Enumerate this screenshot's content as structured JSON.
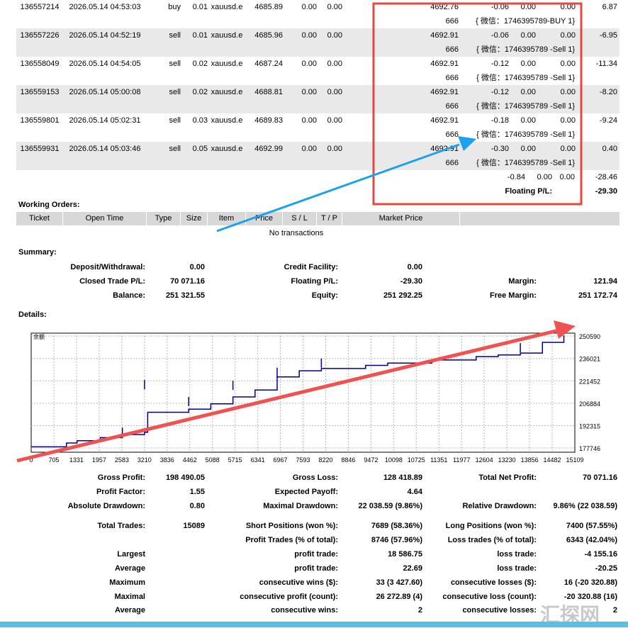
{
  "trades": [
    {
      "ticket": "136557214",
      "time": "2026.05.14 04:53:03",
      "type": "buy",
      "size": "0.01",
      "item": "xauusd.e",
      "price": "4685.89",
      "sl": "0.00",
      "tp": "0.00",
      "close_price": "4692.76",
      "commission": "-0.06",
      "swap": "0.00",
      "taxes": "0.00",
      "profit": "6.87",
      "magic": "666",
      "comment": "{ 微信：1746395789-BUY 1}"
    },
    {
      "ticket": "136557226",
      "time": "2026.05.14 04:52:19",
      "type": "sell",
      "size": "0.01",
      "item": "xauusd.e",
      "price": "4685.96",
      "sl": "0.00",
      "tp": "0.00",
      "close_price": "4692.91",
      "commission": "-0.06",
      "swap": "0.00",
      "taxes": "0.00",
      "profit": "-6.95",
      "magic": "666",
      "comment": "{ 微信：1746395789 -Sell 1}"
    },
    {
      "ticket": "136558049",
      "time": "2026.05.14 04:54:05",
      "type": "sell",
      "size": "0.02",
      "item": "xauusd.e",
      "price": "4687.24",
      "sl": "0.00",
      "tp": "0.00",
      "close_price": "4692.91",
      "commission": "-0.12",
      "swap": "0.00",
      "taxes": "0.00",
      "profit": "-11.34",
      "magic": "666",
      "comment": "{ 微信：1746395789 -Sell 1}"
    },
    {
      "ticket": "136559153",
      "time": "2026.05.14 05:00:08",
      "type": "sell",
      "size": "0.02",
      "item": "xauusd.e",
      "price": "4688.81",
      "sl": "0.00",
      "tp": "0.00",
      "close_price": "4692.91",
      "commission": "-0.12",
      "swap": "0.00",
      "taxes": "0.00",
      "profit": "-8.20",
      "magic": "666",
      "comment": "{ 微信：1746395789 -Sell 1}"
    },
    {
      "ticket": "136559801",
      "time": "2026.05.14 05:02:31",
      "type": "sell",
      "size": "0.03",
      "item": "xauusd.e",
      "price": "4689.83",
      "sl": "0.00",
      "tp": "0.00",
      "close_price": "4692.91",
      "commission": "-0.18",
      "swap": "0.00",
      "taxes": "0.00",
      "profit": "-9.24",
      "magic": "666",
      "comment": "{ 微信：1746395789 -Sell 1}"
    },
    {
      "ticket": "136559931",
      "time": "2026.05.14 05:03:46",
      "type": "sell",
      "size": "0.05",
      "item": "xauusd.e",
      "price": "4692.99",
      "sl": "0.00",
      "tp": "0.00",
      "close_price": "4692.91",
      "commission": "-0.30",
      "swap": "0.00",
      "taxes": "0.00",
      "profit": "0.40",
      "magic": "666",
      "comment": "{ 微信：1746395789 -Sell 1}"
    }
  ],
  "totals": {
    "commission": "-0.84",
    "swap": "0.00",
    "taxes": "0.00",
    "profit": "-28.46",
    "floating_label": "Floating P/L:",
    "floating_value": "-29.30"
  },
  "working_orders": {
    "title": "Working Orders:",
    "headers": [
      "Ticket",
      "Open Time",
      "Type",
      "Size",
      "Item",
      "Price",
      "S / L",
      "T / P",
      "Market Price"
    ],
    "empty": "No transactions"
  },
  "summary": {
    "title": "Summary:",
    "deposit_label": "Deposit/Withdrawal:",
    "deposit": "0.00",
    "credit_label": "Credit Facility:",
    "credit": "0.00",
    "closed_label": "Closed Trade P/L:",
    "closed": "70 071.16",
    "floating_label": "Floating P/L:",
    "floating": "-29.30",
    "margin_label": "Margin:",
    "margin": "121.94",
    "balance_label": "Balance:",
    "balance": "251 321.55",
    "equity_label": "Equity:",
    "equity": "251 292.25",
    "free_margin_label": "Free Margin:",
    "free_margin": "251 172.74"
  },
  "details": {
    "title": "Details:"
  },
  "chart_data": {
    "type": "line",
    "legend": "余额",
    "series": [
      {
        "name": "余额",
        "x": [
          0,
          1000,
          1300,
          1957,
          2583,
          3210,
          3300,
          4462,
          5088,
          5715,
          6341,
          6967,
          7593,
          8220,
          9472,
          10098,
          11351,
          12604,
          13230,
          13856,
          14482,
          15089
        ],
        "values": [
          178500,
          181000,
          182500,
          184500,
          186500,
          188000,
          201000,
          203000,
          206500,
          211000,
          215500,
          224000,
          228000,
          229500,
          231500,
          233000,
          235000,
          237200,
          238300,
          239500,
          246500,
          251000
        ]
      }
    ],
    "x_ticks": [
      "0",
      "705",
      "1331",
      "1957",
      "2583",
      "3210",
      "3836",
      "4462",
      "5088",
      "5715",
      "6341",
      "6967",
      "7593",
      "8220",
      "8846",
      "9472",
      "10098",
      "10725",
      "11351",
      "11977",
      "12604",
      "13230",
      "13856",
      "14482",
      "15109"
    ],
    "y_ticks": [
      "250590",
      "236021",
      "221452",
      "206884",
      "192315",
      "177746"
    ],
    "ylim": [
      175000,
      252500
    ],
    "xlim": [
      0,
      15400
    ]
  },
  "stats": {
    "gross_profit_label": "Gross Profit:",
    "gross_profit": "198 490.05",
    "gross_loss_label": "Gross Loss:",
    "gross_loss": "128 418.89",
    "total_net_label": "Total Net Profit:",
    "total_net": "70 071.16",
    "profit_factor_label": "Profit Factor:",
    "profit_factor": "1.55",
    "expected_payoff_label": "Expected Payoff:",
    "expected_payoff": "4.64",
    "abs_dd_label": "Absolute Drawdown:",
    "abs_dd": "0.80",
    "max_dd_label": "Maximal Drawdown:",
    "max_dd": "22 038.59 (9.86%)",
    "rel_dd_label": "Relative Drawdown:",
    "rel_dd": "9.86% (22 038.59)",
    "total_trades_label": "Total Trades:",
    "total_trades": "15089",
    "short_label": "Short Positions (won %):",
    "short": "7689 (58.36%)",
    "long_label": "Long Positions (won %):",
    "long": "7400 (57.55%)",
    "profit_trades_label": "Profit Trades (% of total):",
    "profit_trades": "8746 (57.96%)",
    "loss_trades_label": "Loss trades (% of total):",
    "loss_trades": "6343 (42.04%)",
    "largest_label": "Largest",
    "l_profit_label": "profit trade:",
    "l_profit": "18 586.75",
    "l_loss_label": "loss trade:",
    "l_loss": "-4 155.16",
    "average_label": "Average",
    "a_profit_label": "profit trade:",
    "a_profit": "22.69",
    "a_loss_label": "loss trade:",
    "a_loss": "-20.25",
    "maximum_label": "Maximum",
    "m_wins_label": "consecutive wins ($):",
    "m_wins": "33 (3 427.60)",
    "m_losses_label": "consecutive losses ($):",
    "m_losses": "16 (-20 320.88)",
    "maximal_label": "Maximal",
    "mx_profit_label": "consecutive profit (count):",
    "mx_profit": "26 272.89 (4)",
    "mx_loss_label": "consecutive loss (count):",
    "mx_loss": "-20 320.88 (16)",
    "average2_label": "Average",
    "av_wins_label": "consecutive wins:",
    "av_wins": "2",
    "av_losses_label": "consecutive losses:",
    "av_losses": "2"
  },
  "watermark": "汇探网",
  "colors": {
    "highlight_box": "#e8473f",
    "arrow_blue": "#1ea0f0",
    "arrow_red": "#f05252",
    "balance_line": "#00008b",
    "grid_row": "#e9e9e9"
  }
}
